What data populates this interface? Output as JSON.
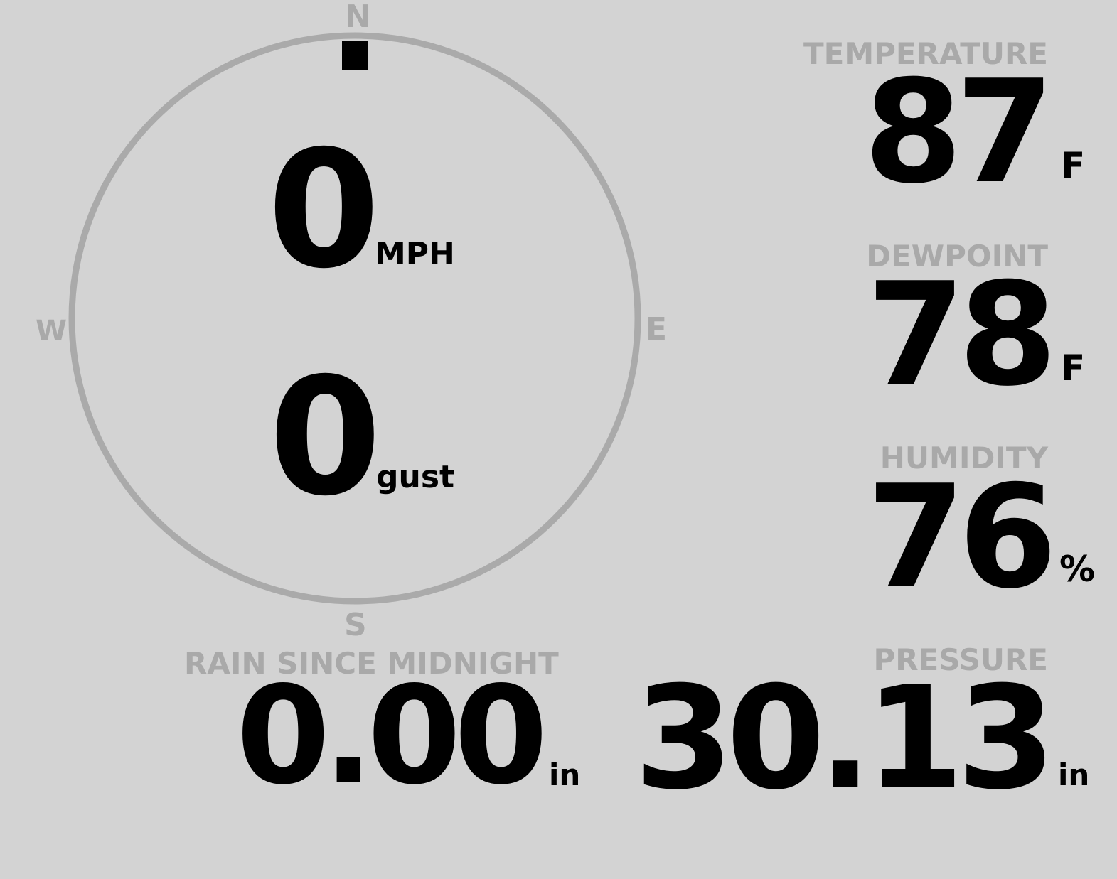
{
  "compass": {
    "n": "N",
    "s": "S",
    "e": "E",
    "w": "W",
    "wind_direction_deg": 0,
    "ring_color": "#aaaaaa"
  },
  "wind": {
    "speed": "0",
    "speed_unit": "MPH",
    "gust": "0",
    "gust_unit": "gust"
  },
  "temperature": {
    "label": "TEMPERATURE",
    "value": "87",
    "unit": "F"
  },
  "dewpoint": {
    "label": "DEWPOINT",
    "value": "78",
    "unit": "F"
  },
  "humidity": {
    "label": "HUMIDITY",
    "value": "76",
    "unit": "%"
  },
  "rain": {
    "label": "RAIN SINCE MIDNIGHT",
    "value": "0.00",
    "unit": "in"
  },
  "pressure": {
    "label": "PRESSURE",
    "value": "30.13",
    "unit": "in"
  }
}
